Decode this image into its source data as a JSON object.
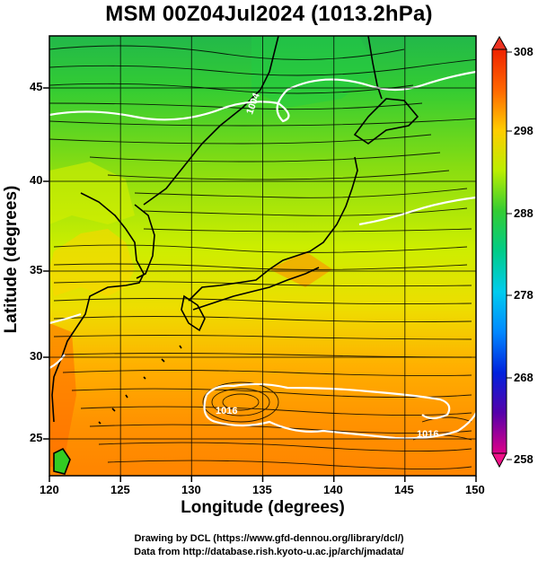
{
  "title": "MSM 00Z04Jul2024 (1013.2hPa)",
  "xlabel": "Longitude (degrees)",
  "ylabel": "Latitude  (degrees)",
  "credits": [
    "Drawing by DCL (https://www.gfd-dennou.org/library/dcl/)",
    "Data from http://database.rish.kyoto-u.ac.jp/arch/jmadata/"
  ],
  "map": {
    "lon_range": [
      120,
      150
    ],
    "lat_range": [
      22.4,
      47.6
    ],
    "x_ticks": [
      "120",
      "125",
      "130",
      "135",
      "140",
      "145",
      "150"
    ],
    "y_ticks": [
      "25",
      "30",
      "35",
      "40",
      "45"
    ],
    "colorbar": {
      "min": 258,
      "max": 308,
      "labels": [
        "308",
        "298",
        "288",
        "278",
        "268",
        "258"
      ],
      "colors": [
        "#ee0077",
        "#5500aa",
        "#0000dd",
        "#0077ff",
        "#00ccee",
        "#00dd88",
        "#22cc22",
        "#88dd00",
        "#ddee00",
        "#ffcc00",
        "#ff8800",
        "#ff4400",
        "#ee2200"
      ]
    },
    "isobar_labels": [
      "1004",
      "1016",
      "1016"
    ]
  }
}
